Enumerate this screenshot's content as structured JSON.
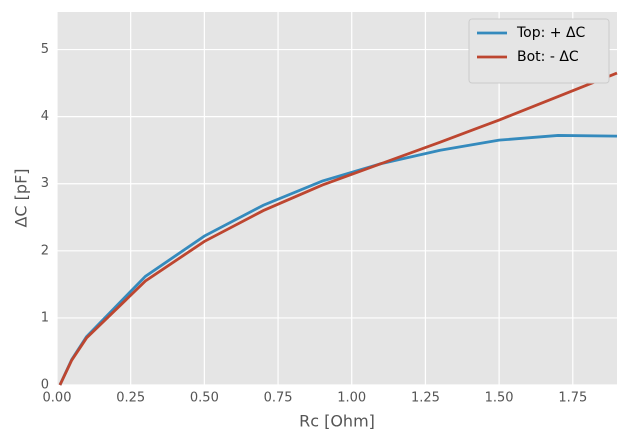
{
  "chart_data": {
    "type": "line",
    "x_label": "Rc [Ohm]",
    "y_label": "ΔC [pF]",
    "x": [
      0.01,
      0.05,
      0.1,
      0.3,
      0.5,
      0.7,
      0.9,
      1.1,
      1.3,
      1.5,
      1.7,
      1.9
    ],
    "series": [
      {
        "name": "Top: + ΔC",
        "color": "#348ABD",
        "values": [
          0,
          0.38,
          0.72,
          1.62,
          2.22,
          2.68,
          3.04,
          3.3,
          3.5,
          3.65,
          3.72,
          3.71
        ]
      },
      {
        "name": "Bot: - ΔC",
        "color": "#BD4630",
        "values": [
          0,
          0.37,
          0.7,
          1.55,
          2.14,
          2.6,
          2.98,
          3.3,
          3.62,
          3.95,
          4.3,
          4.65
        ]
      }
    ],
    "xlim": [
      0,
      1.9
    ],
    "ylim": [
      0,
      5.56
    ],
    "xticks": [
      {
        "value": 0,
        "label": "0.00"
      },
      {
        "value": 0.25,
        "label": "0.25"
      },
      {
        "value": 0.5,
        "label": "0.50"
      },
      {
        "value": 0.75,
        "label": "0.75"
      },
      {
        "value": 1,
        "label": "1.00"
      },
      {
        "value": 1.25,
        "label": "1.25"
      },
      {
        "value": 1.5,
        "label": "1.50"
      },
      {
        "value": 1.75,
        "label": "1.75"
      }
    ],
    "yticks": [
      0,
      1,
      2,
      3,
      4,
      5
    ],
    "grid": true,
    "legend": "upper-right"
  }
}
